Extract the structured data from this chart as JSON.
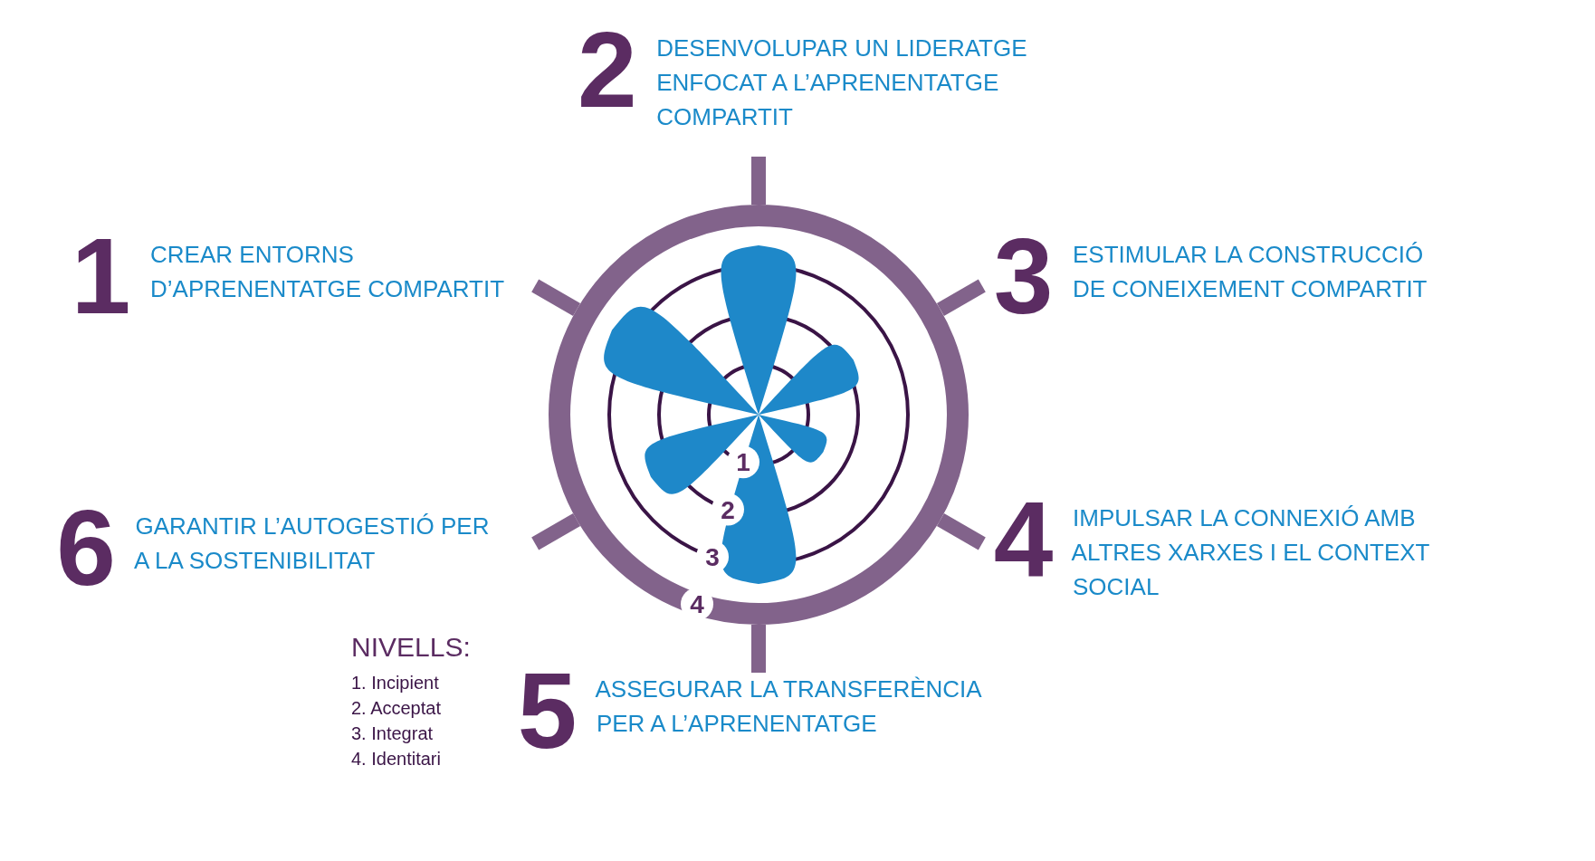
{
  "chart_data": {
    "type": "radar",
    "categories": [
      "2 DESENVOLUPAR UN LIDERATGE ENFOCAT A L’APRENENTATGE COMPARTIT",
      "3 ESTIMULAR LA CONSTRUCCIÓ DE CONEIXEMENT COMPARTIT",
      "4 IMPULSAR LA CONNEXIÓ AMB ALTRES XARXES I EL CONTEXT SOCIAL",
      "5 ASSEGURAR LA TRANSFERÈNCIA PER A L’APRENENTATGE",
      "6 GARANTIR L’AUTOGESTIÓ PER A LA SOSTENIBILITAT",
      "1 CREAR ENTORNS D’APRENENTATGE COMPARTIT"
    ],
    "series": [
      {
        "color": "#1e88c9",
        "values": [
          3.4,
          2.2,
          1.5,
          3.4,
          2.5,
          3.4
        ]
      }
    ],
    "ylim": [
      0,
      4
    ],
    "yticks": [
      1,
      2,
      3,
      4
    ],
    "grid": true,
    "annotations": [
      "NIVELLS:",
      "1. Incipient",
      "2. Acceptat",
      "3. Integrat",
      "4. Identitari"
    ]
  }
}
